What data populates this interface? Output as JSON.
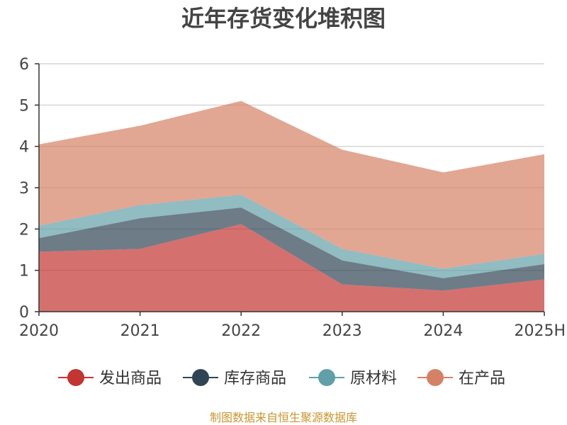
{
  "chart_data": {
    "type": "area",
    "stacked": true,
    "title": "近年存货变化堆积图",
    "xlabel": "",
    "ylabel": "",
    "categories": [
      "2020",
      "2021",
      "2022",
      "2023",
      "2024",
      "2025H"
    ],
    "ylim": [
      0,
      6
    ],
    "yticks": [
      0,
      1,
      2,
      3,
      4,
      5,
      6
    ],
    "grid": true,
    "legend_position": "bottom",
    "series": [
      {
        "name": "发出商品",
        "color": "#c23531",
        "values": [
          1.45,
          1.52,
          2.12,
          0.66,
          0.51,
          0.78
        ]
      },
      {
        "name": "库存商品",
        "color": "#2f4554",
        "values": [
          0.33,
          0.74,
          0.4,
          0.58,
          0.3,
          0.37
        ]
      },
      {
        "name": "原材料",
        "color": "#61a0a8",
        "values": [
          0.3,
          0.32,
          0.31,
          0.28,
          0.23,
          0.25
        ]
      },
      {
        "name": "在产品",
        "color": "#d48265",
        "values": [
          1.97,
          1.92,
          2.27,
          2.4,
          2.33,
          2.41
        ]
      }
    ]
  },
  "source_text": "制图数据来自恒生聚源数据库"
}
